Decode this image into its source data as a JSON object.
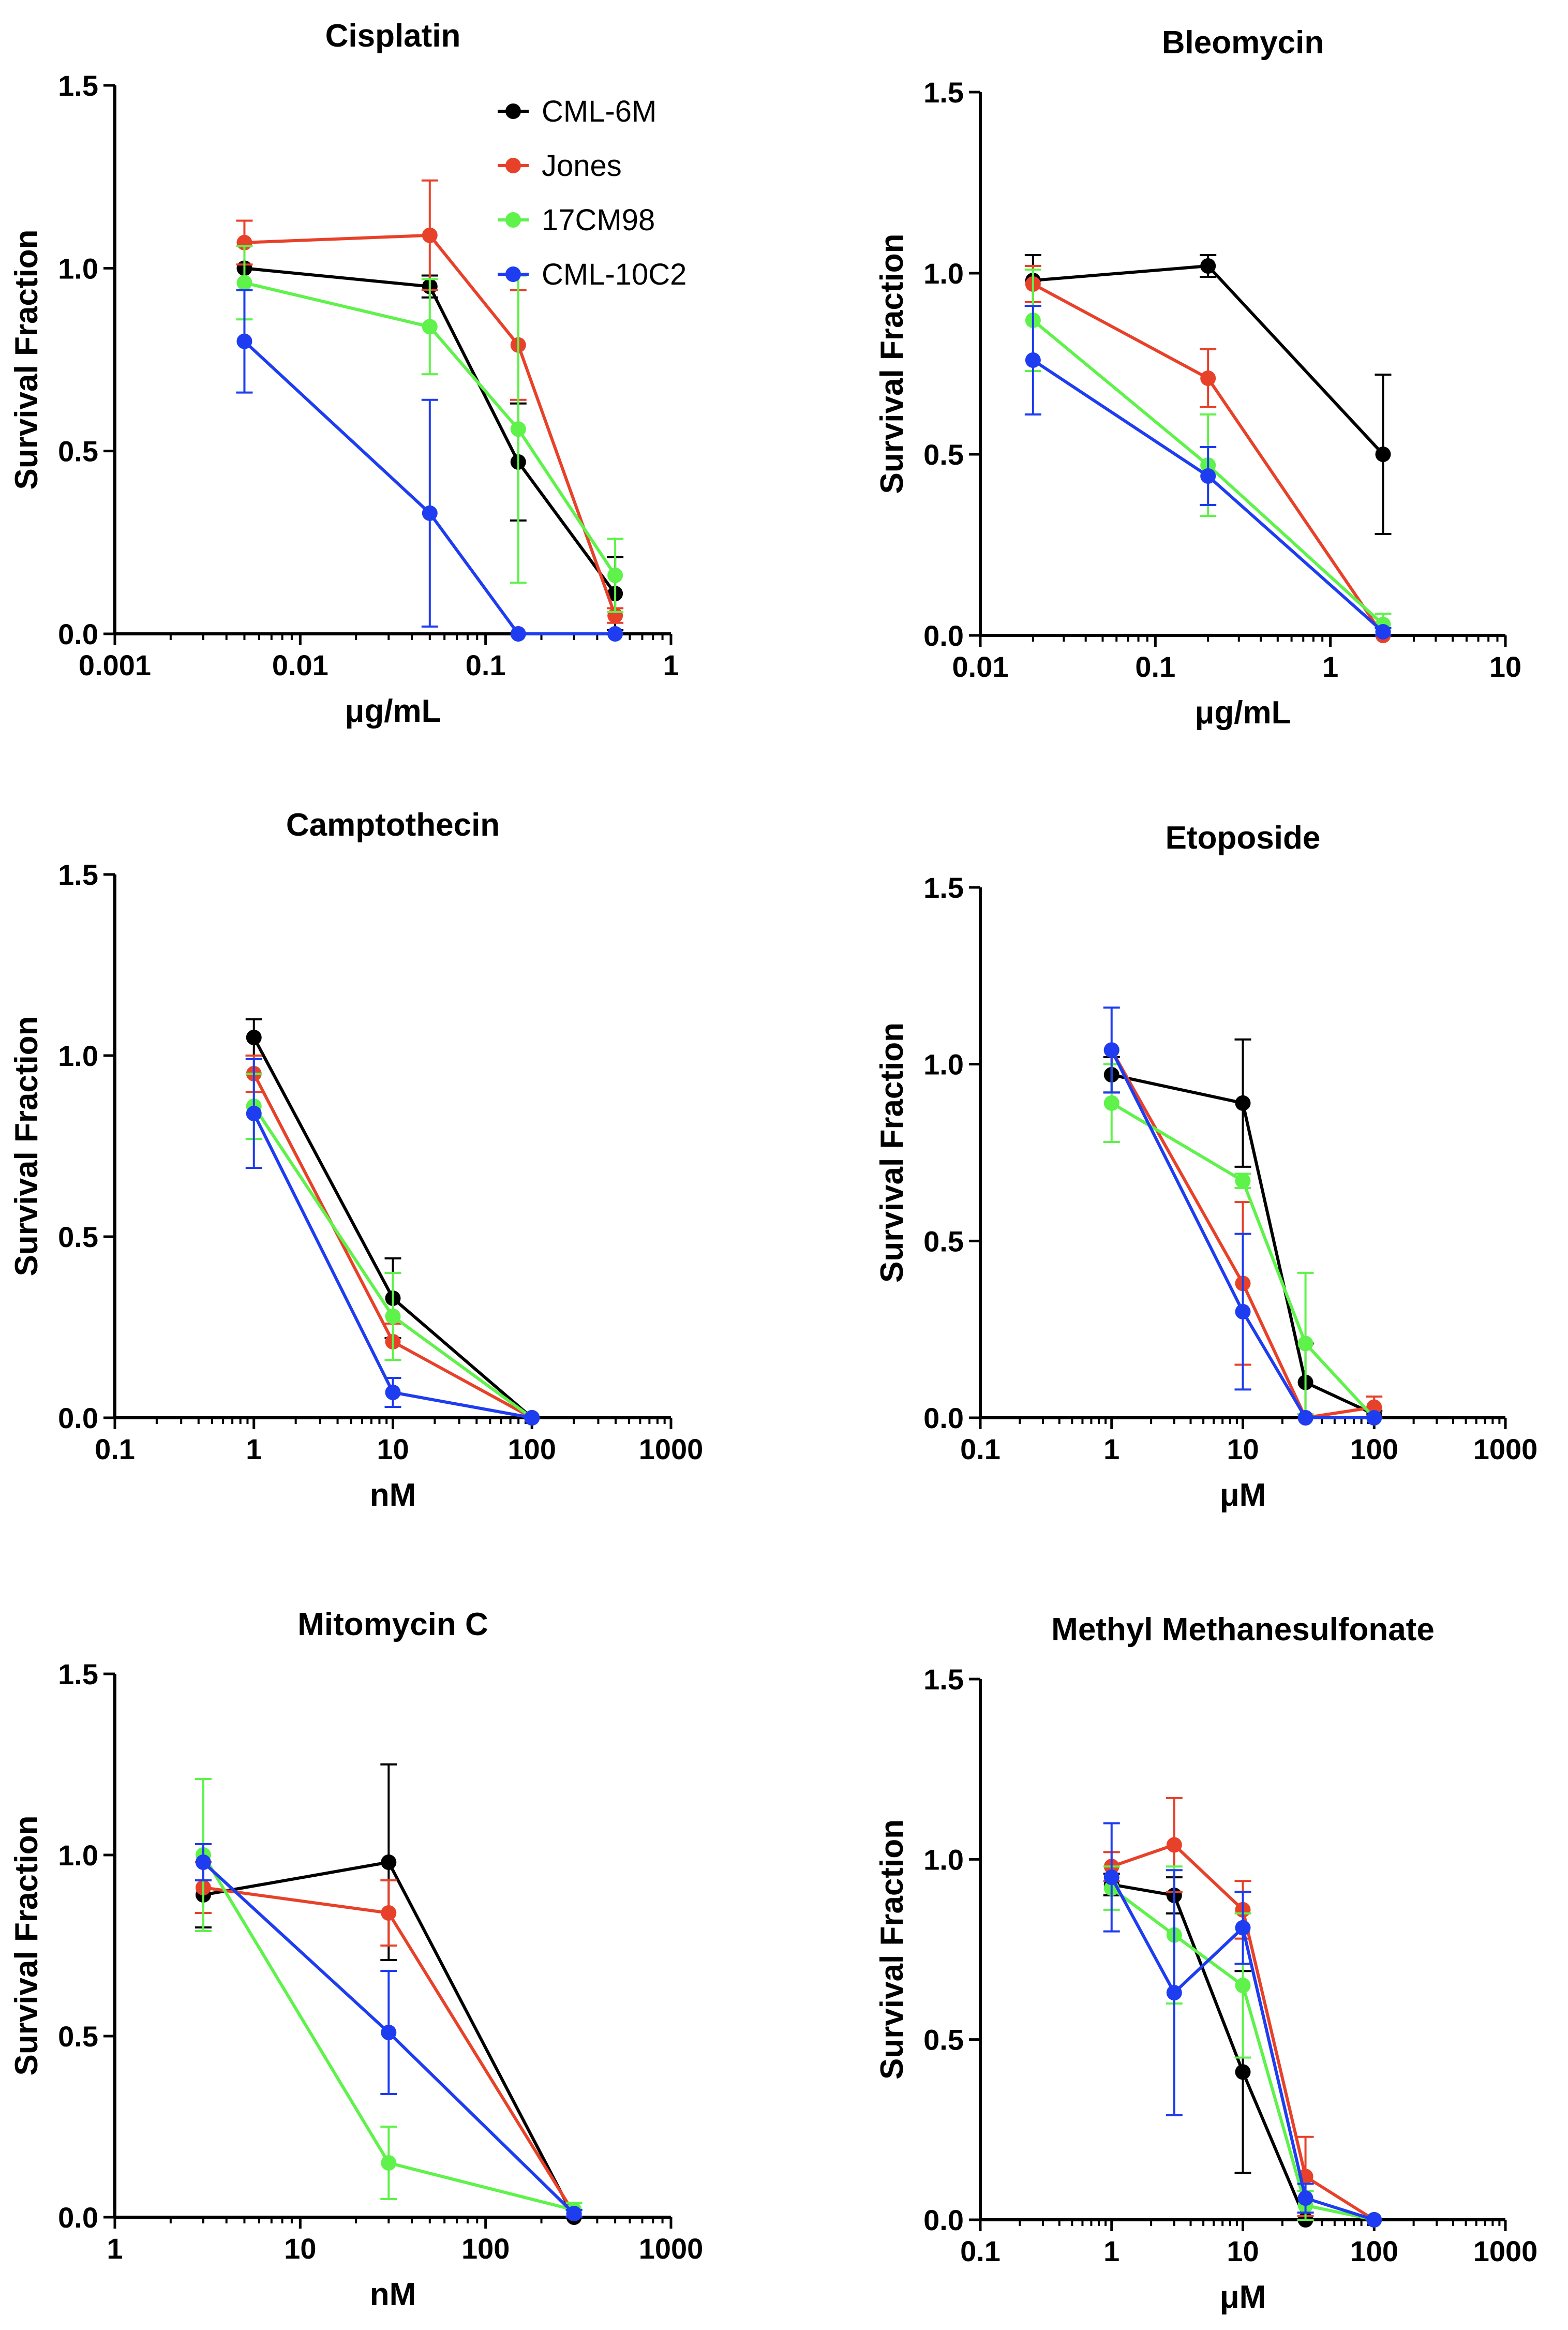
{
  "figure": {
    "legend_panel": 0
  },
  "colors": {
    "CML-6M": "#000000",
    "Jones": "#e8412a",
    "17CM98": "#5ef24a",
    "CML-10C2": "#1e3cf0"
  },
  "chart_data": [
    {
      "type": "line",
      "title": "Cisplatin",
      "xlabel": "μg/mL",
      "ylabel": "Survival Fraction",
      "xscale": "log",
      "xlim": [
        0.001,
        1
      ],
      "ylim": [
        0,
        1.5
      ],
      "xticks": [
        "0.001",
        "0.01",
        "0.1",
        "1"
      ],
      "yticks": [
        "0.0",
        "0.5",
        "1.0",
        "1.5"
      ],
      "legend": [
        "CML-6M",
        "Jones",
        "17CM98",
        "CML-10C2"
      ],
      "legend_position": "top-right",
      "series": [
        {
          "name": "CML-6M",
          "x": [
            0.005,
            0.05,
            0.15,
            0.5
          ],
          "y": [
            1.0,
            0.95,
            0.47,
            0.11
          ],
          "err": [
            0.0,
            0.03,
            0.16,
            0.1
          ]
        },
        {
          "name": "Jones",
          "x": [
            0.005,
            0.05,
            0.15,
            0.5
          ],
          "y": [
            1.07,
            1.09,
            0.79,
            0.05
          ],
          "err": [
            0.06,
            0.15,
            0.15,
            0.02
          ]
        },
        {
          "name": "17CM98",
          "x": [
            0.005,
            0.05,
            0.15,
            0.5
          ],
          "y": [
            0.96,
            0.84,
            0.56,
            0.16
          ],
          "err": [
            0.1,
            0.13,
            0.42,
            0.1
          ]
        },
        {
          "name": "CML-10C2",
          "x": [
            0.005,
            0.05,
            0.15,
            0.5
          ],
          "y": [
            0.8,
            0.33,
            0.0,
            0.0
          ],
          "err": [
            0.14,
            0.31,
            0.0,
            0.0
          ]
        }
      ]
    },
    {
      "type": "line",
      "title": "Bleomycin",
      "xlabel": "μg/mL",
      "ylabel": "Survival Fraction",
      "xscale": "log",
      "xlim": [
        0.01,
        10
      ],
      "ylim": [
        0,
        1.5
      ],
      "xticks": [
        "0.01",
        "0.1",
        "1",
        "10"
      ],
      "yticks": [
        "0.0",
        "0.5",
        "1.0",
        "1.5"
      ],
      "series": [
        {
          "name": "CML-6M",
          "x": [
            0.02,
            0.2,
            2
          ],
          "y": [
            0.98,
            1.02,
            0.5
          ],
          "err": [
            0.07,
            0.03,
            0.22
          ]
        },
        {
          "name": "Jones",
          "x": [
            0.02,
            0.2,
            2
          ],
          "y": [
            0.97,
            0.71,
            0.0
          ],
          "err": [
            0.05,
            0.08,
            0.0
          ]
        },
        {
          "name": "17CM98",
          "x": [
            0.02,
            0.2,
            2
          ],
          "y": [
            0.87,
            0.47,
            0.03
          ],
          "err": [
            0.14,
            0.14,
            0.03
          ]
        },
        {
          "name": "CML-10C2",
          "x": [
            0.02,
            0.2,
            2
          ],
          "y": [
            0.76,
            0.44,
            0.01
          ],
          "err": [
            0.15,
            0.08,
            0.01
          ]
        }
      ]
    },
    {
      "type": "line",
      "title": "Camptothecin",
      "xlabel": "nM",
      "ylabel": "Survival Fraction",
      "xscale": "log",
      "xlim": [
        0.1,
        1000
      ],
      "ylim": [
        0,
        1.5
      ],
      "xticks": [
        "0.1",
        "1",
        "10",
        "100",
        "1000"
      ],
      "yticks": [
        "0.0",
        "0.5",
        "1.0",
        "1.5"
      ],
      "series": [
        {
          "name": "CML-6M",
          "x": [
            1,
            10,
            100
          ],
          "y": [
            1.05,
            0.33,
            0.0
          ],
          "err": [
            0.05,
            0.11,
            0.0
          ]
        },
        {
          "name": "Jones",
          "x": [
            1,
            10,
            100
          ],
          "y": [
            0.95,
            0.21,
            0.0
          ],
          "err": [
            0.05,
            0.05,
            0.0
          ]
        },
        {
          "name": "17CM98",
          "x": [
            1,
            10,
            100
          ],
          "y": [
            0.86,
            0.28,
            0.0
          ],
          "err": [
            0.09,
            0.12,
            0.0
          ]
        },
        {
          "name": "CML-10C2",
          "x": [
            1,
            10,
            100
          ],
          "y": [
            0.84,
            0.07,
            0.0
          ],
          "err": [
            0.15,
            0.04,
            0.0
          ]
        }
      ]
    },
    {
      "type": "line",
      "title": "Etoposide",
      "xlabel": "μM",
      "ylabel": "Survival Fraction",
      "xscale": "log",
      "xlim": [
        0.1,
        1000
      ],
      "ylim": [
        0,
        1.5
      ],
      "xticks": [
        "0.1",
        "1",
        "10",
        "100",
        "1000"
      ],
      "yticks": [
        "0.0",
        "0.5",
        "1.0",
        "1.5"
      ],
      "series": [
        {
          "name": "CML-6M",
          "x": [
            1,
            10,
            30,
            100
          ],
          "y": [
            0.97,
            0.89,
            0.1,
            0.01
          ],
          "err": [
            0.05,
            0.18,
            0.11,
            0.01
          ]
        },
        {
          "name": "Jones",
          "x": [
            1,
            10,
            30,
            100
          ],
          "y": [
            1.04,
            0.38,
            0.0,
            0.03
          ],
          "err": [
            0.0,
            0.23,
            0.0,
            0.03
          ]
        },
        {
          "name": "17CM98",
          "x": [
            1,
            10,
            30,
            100
          ],
          "y": [
            0.89,
            0.67,
            0.21,
            0.0
          ],
          "err": [
            0.11,
            0.02,
            0.2,
            0.0
          ]
        },
        {
          "name": "CML-10C2",
          "x": [
            1,
            10,
            30,
            100
          ],
          "y": [
            1.04,
            0.3,
            0.0,
            0.0
          ],
          "err": [
            0.12,
            0.22,
            0.0,
            0.0
          ]
        }
      ]
    },
    {
      "type": "line",
      "title": "Mitomycin C",
      "xlabel": "nM",
      "ylabel": "Survival Fraction",
      "xscale": "log",
      "xlim": [
        1,
        1000
      ],
      "ylim": [
        0,
        1.5
      ],
      "xticks": [
        "1",
        "10",
        "100",
        "1000"
      ],
      "yticks": [
        "0.0",
        "0.5",
        "1.0",
        "1.5"
      ],
      "series": [
        {
          "name": "CML-6M",
          "x": [
            3,
            30,
            300
          ],
          "y": [
            0.89,
            0.98,
            0.0
          ],
          "err": [
            0.09,
            0.27,
            0.0
          ]
        },
        {
          "name": "Jones",
          "x": [
            3,
            30,
            300
          ],
          "y": [
            0.91,
            0.84,
            0.01
          ],
          "err": [
            0.07,
            0.09,
            0.01
          ]
        },
        {
          "name": "17CM98",
          "x": [
            3,
            30,
            300
          ],
          "y": [
            1.0,
            0.15,
            0.02
          ],
          "err": [
            0.21,
            0.1,
            0.02
          ]
        },
        {
          "name": "CML-10C2",
          "x": [
            3,
            30,
            300
          ],
          "y": [
            0.98,
            0.51,
            0.01
          ],
          "err": [
            0.05,
            0.17,
            0.01
          ]
        }
      ]
    },
    {
      "type": "line",
      "title": "Methyl Methanesulfonate",
      "xlabel": "μM",
      "ylabel": "Survival Fraction",
      "xscale": "log",
      "xlim": [
        0.1,
        1000
      ],
      "ylim": [
        0,
        1.5
      ],
      "xticks": [
        "0.1",
        "1",
        "10",
        "100",
        "1000"
      ],
      "yticks": [
        "0.0",
        "0.5",
        "1.0",
        "1.5"
      ],
      "series": [
        {
          "name": "CML-6M",
          "x": [
            1,
            3,
            10,
            30,
            100
          ],
          "y": [
            0.93,
            0.9,
            0.41,
            0.0,
            0.0
          ],
          "err": [
            0.03,
            0.05,
            0.28,
            0.0,
            0.0
          ]
        },
        {
          "name": "Jones",
          "x": [
            1,
            3,
            10,
            30,
            100
          ],
          "y": [
            0.98,
            1.04,
            0.86,
            0.12,
            0.0
          ],
          "err": [
            0.04,
            0.13,
            0.08,
            0.11,
            0.0
          ]
        },
        {
          "name": "17CM98",
          "x": [
            1,
            3,
            10,
            30,
            100
          ],
          "y": [
            0.92,
            0.79,
            0.65,
            0.04,
            0.0
          ],
          "err": [
            0.06,
            0.19,
            0.2,
            0.04,
            0.0
          ]
        },
        {
          "name": "CML-10C2",
          "x": [
            1,
            3,
            10,
            30,
            100
          ],
          "y": [
            0.95,
            0.63,
            0.81,
            0.06,
            0.0
          ],
          "err": [
            0.15,
            0.34,
            0.1,
            0.04,
            0.0
          ]
        }
      ]
    }
  ]
}
